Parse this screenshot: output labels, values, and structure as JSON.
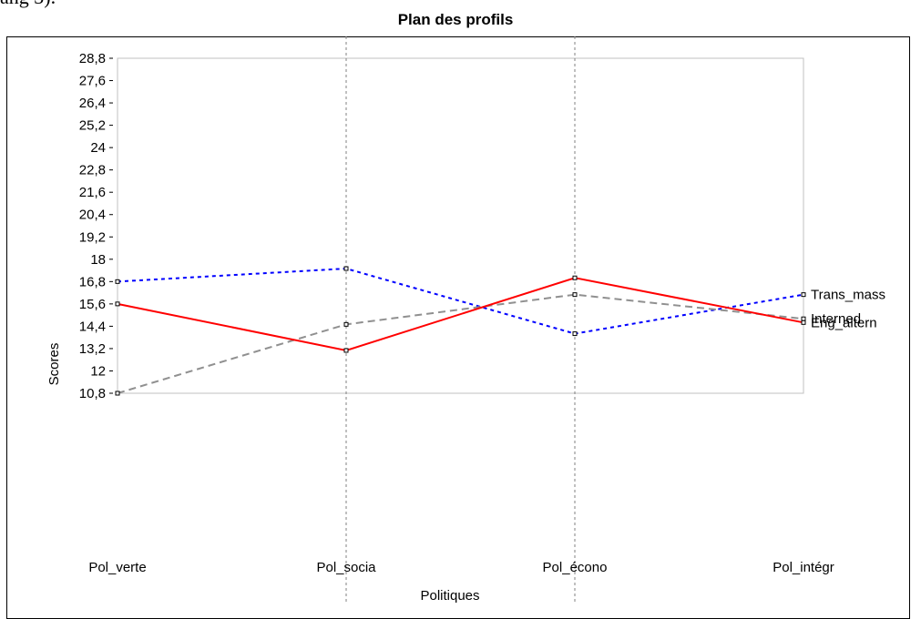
{
  "page": {
    "fragment_text": "ang 3)."
  },
  "chart_data": {
    "type": "line",
    "title": "Plan des profils",
    "xlabel": "Politiques",
    "ylabel": "Scores",
    "categories": [
      "Pol_verte",
      "Pol_socia",
      "Pol_écono",
      "Pol_intégr"
    ],
    "yticks": [
      "10,8",
      "12",
      "13,2",
      "14,4",
      "15,6",
      "16,8",
      "18",
      "19,2",
      "20,4",
      "21,6",
      "22,8",
      "24",
      "25,2",
      "26,4",
      "27,6",
      "28,8"
    ],
    "ylim": [
      10.8,
      28.8
    ],
    "grid": "vertical-dotted",
    "legend": "end-labels",
    "series": [
      {
        "name": "Trans_mass",
        "values": [
          16.8,
          17.5,
          14.0,
          16.1
        ],
        "color": "#0000ff",
        "dash": "4,4"
      },
      {
        "name": "Interned",
        "values": [
          10.8,
          14.5,
          16.1,
          14.8
        ],
        "color": "#909090",
        "dash": "8,5"
      },
      {
        "name": "Eng_altern",
        "values": [
          15.6,
          13.1,
          17.0,
          14.6
        ],
        "color": "#ff0000",
        "dash": ""
      }
    ]
  }
}
